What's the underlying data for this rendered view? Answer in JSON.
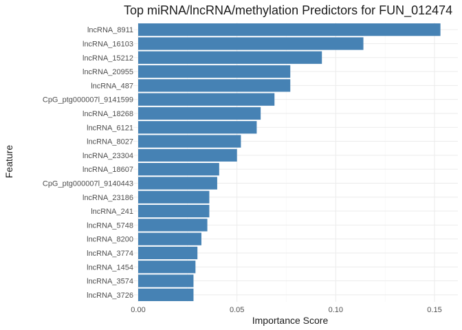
{
  "chart_data": {
    "type": "bar",
    "orientation": "horizontal",
    "title": "Top miRNA/lncRNA/methylation Predictors for FUN_012474",
    "xlabel": "Importance Score",
    "ylabel": "Feature",
    "xlim": [
      0,
      0.155
    ],
    "x_ticks": [
      0,
      0.05,
      0.1,
      0.15
    ],
    "x_tick_labels": [
      "0.00",
      "0.05",
      "0.10",
      "0.15"
    ],
    "grid": true,
    "bar_color": "#4682b4",
    "categories": [
      "lncRNA_8911",
      "lncRNA_16103",
      "lncRNA_15212",
      "lncRNA_20955",
      "lncRNA_487",
      "CpG_ptg000007l_9141599",
      "lncRNA_18268",
      "lncRNA_6121",
      "lncRNA_8027",
      "lncRNA_23304",
      "lncRNA_18607",
      "CpG_ptg000007l_9140443",
      "lncRNA_23186",
      "lncRNA_241",
      "lncRNA_5748",
      "lncRNA_8200",
      "lncRNA_3774",
      "lncRNA_1454",
      "lncRNA_3574",
      "lncRNA_3726"
    ],
    "values": [
      0.153,
      0.114,
      0.093,
      0.077,
      0.077,
      0.069,
      0.062,
      0.06,
      0.052,
      0.05,
      0.041,
      0.04,
      0.036,
      0.036,
      0.035,
      0.032,
      0.03,
      0.029,
      0.028,
      0.028
    ]
  }
}
